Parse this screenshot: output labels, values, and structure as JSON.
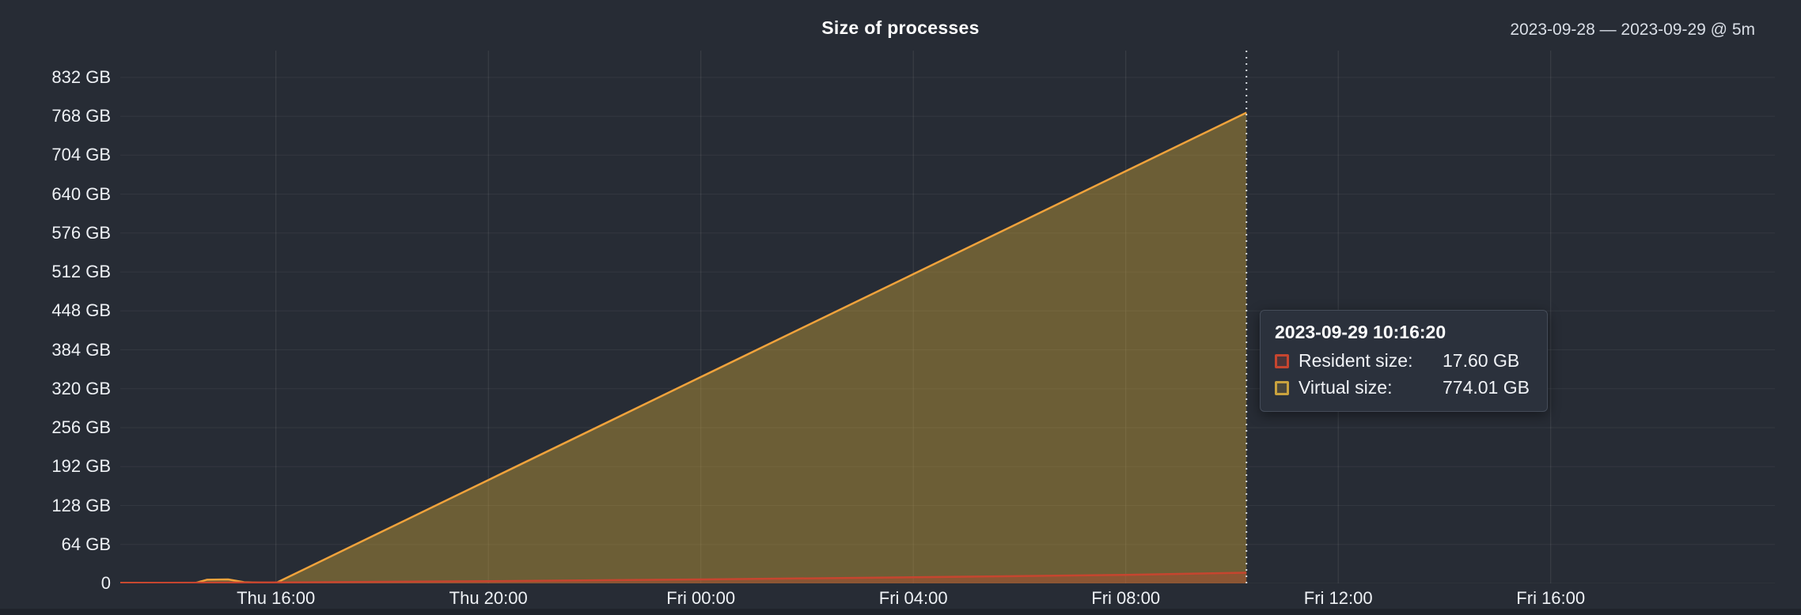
{
  "header": {
    "title": "Size of processes",
    "date_range": "2023-09-28 — 2023-09-29 @ 5m"
  },
  "chart_data": {
    "type": "area",
    "title": "Size of processes",
    "x_unit": "hours since Thu 2023-09-28 12:00",
    "xlim": [
      1.07,
      32.22
    ],
    "ylim": [
      0,
      876
    ],
    "grid": true,
    "legend_position": "tooltip",
    "x_ticks": [
      {
        "t": 4,
        "label": "Thu 16:00"
      },
      {
        "t": 8,
        "label": "Thu 20:00"
      },
      {
        "t": 12,
        "label": "Fri 00:00"
      },
      {
        "t": 16,
        "label": "Fri 04:00"
      },
      {
        "t": 20,
        "label": "Fri 08:00"
      },
      {
        "t": 24,
        "label": "Fri 12:00"
      },
      {
        "t": 28,
        "label": "Fri 16:00"
      }
    ],
    "y_ticks": [
      {
        "v": 832,
        "label": "832 GB"
      },
      {
        "v": 768,
        "label": "768 GB"
      },
      {
        "v": 704,
        "label": "704 GB"
      },
      {
        "v": 640,
        "label": "640 GB"
      },
      {
        "v": 576,
        "label": "576 GB"
      },
      {
        "v": 512,
        "label": "512 GB"
      },
      {
        "v": 448,
        "label": "448 GB"
      },
      {
        "v": 384,
        "label": "384 GB"
      },
      {
        "v": 320,
        "label": "320 GB"
      },
      {
        "v": 256,
        "label": "256 GB"
      },
      {
        "v": 192,
        "label": "192 GB"
      },
      {
        "v": 128,
        "label": "128 GB"
      },
      {
        "v": 64,
        "label": "64 GB"
      },
      {
        "v": 0,
        "label": "0"
      }
    ],
    "series": [
      {
        "name": "Virtual size",
        "line_color": "#f0a33c",
        "fill_color": "rgba(199,160,56,0.44)",
        "points": [
          [
            1.07,
            1
          ],
          [
            2.5,
            1
          ],
          [
            2.7,
            6
          ],
          [
            3.1,
            6.5
          ],
          [
            3.4,
            2
          ],
          [
            4.0,
            0.7
          ],
          [
            6,
            85.3
          ],
          [
            8,
            170
          ],
          [
            12,
            339.3
          ],
          [
            16,
            508.5
          ],
          [
            20,
            677.8
          ],
          [
            22.272,
            774.01
          ]
        ]
      },
      {
        "name": "Resident size",
        "line_color": "#c6452f",
        "fill_color": "rgba(198,69,47,0.35)",
        "points": [
          [
            1.07,
            0.8
          ],
          [
            4,
            1.5
          ],
          [
            8,
            3.5
          ],
          [
            12,
            6.5
          ],
          [
            16,
            10
          ],
          [
            20,
            14
          ],
          [
            22.272,
            17.6
          ]
        ]
      }
    ],
    "crosshair_t": 22.272
  },
  "tooltip": {
    "timestamp": "2023-09-29 10:16:20",
    "rows": [
      {
        "label": "Resident size:",
        "value": "17.60 GB",
        "color": "#c6452f"
      },
      {
        "label": "Virtual size:",
        "value": "774.01 GB",
        "color": "#c9a23e"
      }
    ]
  },
  "colors": {
    "background": "#272c35",
    "grid_h": "rgba(255,255,255,0.06)",
    "grid_v": "rgba(255,255,255,0.10)",
    "crosshair": "#d7dbe2",
    "text": "#eef1f5",
    "tooltip_bg": "#2b313c",
    "tooltip_border": "#454c59"
  }
}
